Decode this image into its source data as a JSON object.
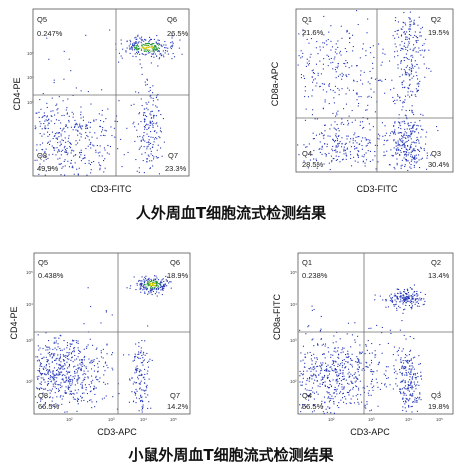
{
  "captions": {
    "human": "人外周血T细胞流式检测结果",
    "mouse": "小鼠外周血T细胞流式检测结果"
  },
  "colors": {
    "axes": "#555555",
    "gate": "#6e6e6e",
    "dot": "#2436b8",
    "dense_dot": "#2a9a3a",
    "hot_dot": "#d9c800"
  },
  "chart_data": [
    {
      "type": "scatter",
      "title": "",
      "xlabel": "CD3-FITC",
      "ylabel": "CD4-PE",
      "x_scale": "log",
      "y_scale": "log",
      "quadrants": [
        {
          "name": "Q5",
          "value": "0.247%",
          "position": "top-left"
        },
        {
          "name": "Q6",
          "value": "26.5%",
          "position": "top-right"
        },
        {
          "name": "Q8",
          "value": "49.9%",
          "position": "bottom-left"
        },
        {
          "name": "Q7",
          "value": "23.3%",
          "position": "bottom-right"
        }
      ],
      "tick_labels": {
        "y": [
          "10³",
          "10⁴",
          "10⁵"
        ],
        "x": []
      }
    },
    {
      "type": "scatter",
      "title": "",
      "xlabel": "CD3-FITC",
      "ylabel": "CD8a-APC",
      "x_scale": "log",
      "y_scale": "log",
      "quadrants": [
        {
          "name": "Q1",
          "value": "21.6%",
          "position": "top-left"
        },
        {
          "name": "Q2",
          "value": "19.5%",
          "position": "top-right"
        },
        {
          "name": "Q4",
          "value": "28.5%",
          "position": "bottom-left"
        },
        {
          "name": "Q3",
          "value": "30.4%",
          "position": "bottom-right"
        }
      ],
      "tick_labels": {
        "y": [],
        "x": []
      }
    },
    {
      "type": "scatter",
      "title": "",
      "xlabel": "CD3-APC",
      "ylabel": "CD4-PE",
      "x_scale": "log",
      "y_scale": "log",
      "quadrants": [
        {
          "name": "Q5",
          "value": "0.438%",
          "position": "top-left"
        },
        {
          "name": "Q6",
          "value": "18.9%",
          "position": "top-right"
        },
        {
          "name": "Q8",
          "value": "66.5%",
          "position": "bottom-left"
        },
        {
          "name": "Q7",
          "value": "14.2%",
          "position": "bottom-right"
        }
      ],
      "tick_labels": {
        "y": [
          "10⁵",
          "10⁴",
          "10³",
          "10²"
        ],
        "x": [
          "10²",
          "10³",
          "10⁴",
          "10⁵"
        ]
      }
    },
    {
      "type": "scatter",
      "title": "",
      "xlabel": "CD3-APC",
      "ylabel": "CD8a-FITC",
      "x_scale": "log",
      "y_scale": "log",
      "quadrants": [
        {
          "name": "Q1",
          "value": "0.238%",
          "position": "top-left"
        },
        {
          "name": "Q2",
          "value": "13.4%",
          "position": "top-right"
        },
        {
          "name": "Q4",
          "value": "66.5%",
          "position": "bottom-left"
        },
        {
          "name": "Q3",
          "value": "19.8%",
          "position": "bottom-right"
        }
      ],
      "tick_labels": {
        "y": [
          "10⁵",
          "10⁴",
          "10³",
          "10²"
        ],
        "x": [
          "10²",
          "10³",
          "10⁴",
          "10⁵"
        ]
      }
    }
  ]
}
